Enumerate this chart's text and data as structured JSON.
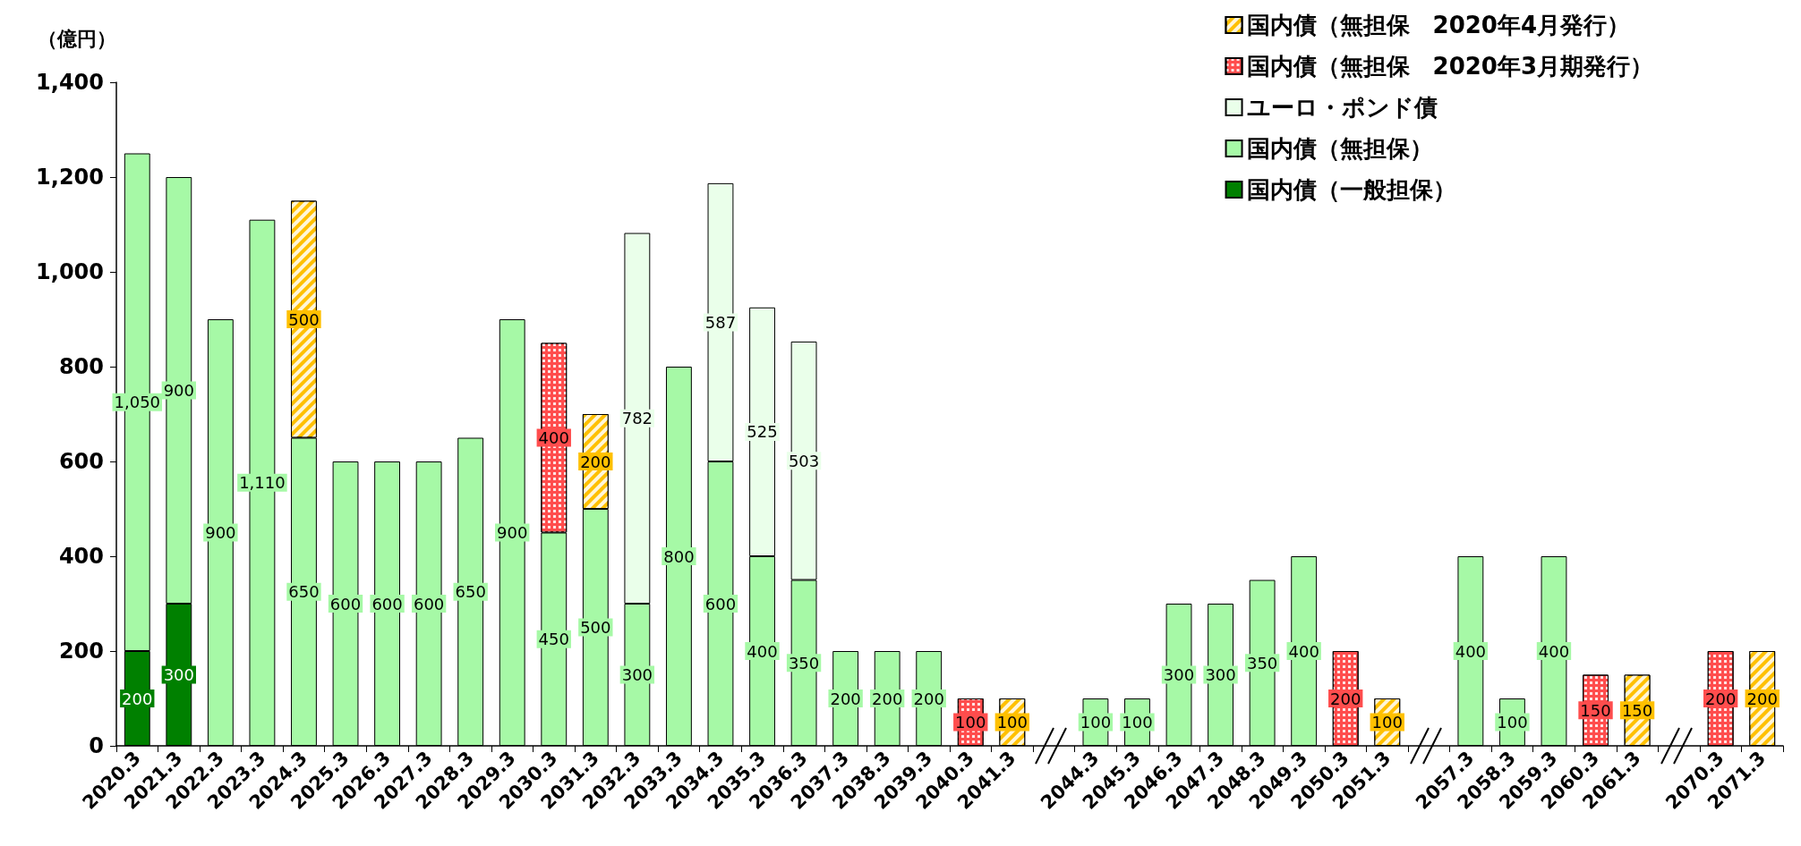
{
  "chart_data": {
    "type": "bar",
    "stacked": true,
    "ylabel": "（億円）",
    "legend": "top right",
    "categories": [
      "2020.3",
      "2021.3",
      "2022.3",
      "2023.3",
      "2024.3",
      "2025.3",
      "2026.3",
      "2027.3",
      "2028.3",
      "2029.3",
      "2030.3",
      "2031.3",
      "2032.3",
      "2033.3",
      "2034.3",
      "2035.3",
      "2036.3",
      "2037.3",
      "2038.3",
      "2039.3",
      "2040.3",
      "2041.3",
      null,
      "2044.3",
      "2045.3",
      "2046.3",
      "2047.3",
      "2048.3",
      "2049.3",
      "2050.3",
      "2051.3",
      null,
      "2057.3",
      "2058.3",
      "2059.3",
      "2060.3",
      "2061.3",
      null,
      "2070.3",
      "2071.3"
    ],
    "ylim": [
      0,
      1400
    ],
    "yticks": [
      0,
      200,
      400,
      600,
      800,
      {
        "value": 1000,
        "label": "1,000"
      },
      {
        "value": 1200,
        "label": "1,200"
      },
      {
        "value": 1400,
        "label": "1,400"
      }
    ],
    "series": [
      {
        "name": "国内債（一般担保）",
        "color": "#008000",
        "values": [
          200,
          300,
          null,
          null,
          null,
          null,
          null,
          null,
          null,
          null,
          null,
          null,
          null,
          null,
          null,
          null,
          null,
          null,
          null,
          null,
          null,
          null,
          null,
          null,
          null,
          null,
          null,
          null,
          null,
          null,
          null,
          null,
          null,
          null,
          null,
          null,
          null,
          null,
          null,
          null
        ],
        "value_labels": [
          "200",
          "300",
          null,
          null,
          null,
          null,
          null,
          null,
          null,
          null,
          null,
          null,
          null,
          null,
          null,
          null,
          null,
          null,
          null,
          null,
          null,
          null,
          null,
          null,
          null,
          null,
          null,
          null,
          null,
          null,
          null,
          null,
          null,
          null,
          null,
          null,
          null,
          null,
          null,
          null
        ]
      },
      {
        "name": "国内債（無担保）",
        "color": "#a6f9a6",
        "values": [
          1050,
          900,
          900,
          1110,
          650,
          600,
          600,
          600,
          650,
          900,
          450,
          500,
          300,
          800,
          600,
          400,
          350,
          200,
          200,
          200,
          null,
          null,
          null,
          100,
          100,
          300,
          300,
          350,
          400,
          null,
          null,
          null,
          400,
          100,
          400,
          null,
          null,
          null,
          null,
          null
        ],
        "value_labels": [
          "1,050",
          "900",
          "900",
          "1,110",
          "650",
          "600",
          "600",
          "600",
          "650",
          "900",
          "450",
          "500",
          "300",
          "800",
          "600",
          "400",
          "350",
          "200",
          "200",
          "200",
          null,
          null,
          null,
          "100",
          "100",
          "300",
          "300",
          "350",
          "400",
          null,
          null,
          null,
          "400",
          "100",
          "400",
          null,
          null,
          null,
          null,
          null
        ]
      },
      {
        "name": "ユーロ・ポンド債",
        "color": "#eaffea",
        "values": [
          null,
          null,
          null,
          null,
          null,
          null,
          null,
          null,
          null,
          null,
          null,
          null,
          782,
          null,
          587,
          525,
          503,
          null,
          null,
          null,
          null,
          null,
          null,
          null,
          null,
          null,
          null,
          null,
          null,
          null,
          null,
          null,
          null,
          null,
          null,
          null,
          null,
          null,
          null,
          null
        ],
        "value_labels": [
          null,
          null,
          null,
          null,
          null,
          null,
          null,
          null,
          null,
          null,
          null,
          null,
          "782",
          null,
          "587",
          "525",
          "503",
          null,
          null,
          null,
          null,
          null,
          null,
          null,
          null,
          null,
          null,
          null,
          null,
          null,
          null,
          null,
          null,
          null,
          null,
          null,
          null,
          null,
          null,
          null
        ]
      },
      {
        "name": "国内債（無担保　2020年3月期発行）",
        "color": "#ff4d4d",
        "values": [
          null,
          null,
          null,
          null,
          null,
          null,
          null,
          null,
          null,
          null,
          400,
          null,
          null,
          null,
          null,
          null,
          null,
          null,
          null,
          null,
          100,
          null,
          null,
          null,
          null,
          null,
          null,
          null,
          null,
          200,
          null,
          null,
          null,
          null,
          null,
          150,
          null,
          null,
          200,
          null
        ],
        "value_labels": [
          null,
          null,
          null,
          null,
          null,
          null,
          null,
          null,
          null,
          null,
          "400",
          null,
          null,
          null,
          null,
          null,
          null,
          null,
          null,
          null,
          "100",
          null,
          null,
          null,
          null,
          null,
          null,
          null,
          null,
          "200",
          null,
          null,
          null,
          null,
          null,
          "150",
          null,
          null,
          "200",
          null
        ]
      },
      {
        "name": "国内債（無担保　2020年4月発行）",
        "color": "#ffc000",
        "values": [
          null,
          null,
          null,
          null,
          500,
          null,
          null,
          null,
          null,
          null,
          null,
          200,
          null,
          null,
          null,
          null,
          null,
          null,
          null,
          null,
          null,
          100,
          null,
          null,
          null,
          null,
          null,
          null,
          null,
          null,
          100,
          null,
          null,
          null,
          null,
          null,
          150,
          null,
          null,
          200
        ],
        "value_labels": [
          null,
          null,
          null,
          null,
          "500",
          null,
          null,
          null,
          null,
          null,
          null,
          "200",
          null,
          null,
          null,
          null,
          null,
          null,
          null,
          null,
          null,
          "100",
          null,
          null,
          null,
          null,
          null,
          null,
          null,
          null,
          "100",
          null,
          null,
          null,
          null,
          null,
          "150",
          null,
          null,
          "200"
        ]
      }
    ]
  }
}
